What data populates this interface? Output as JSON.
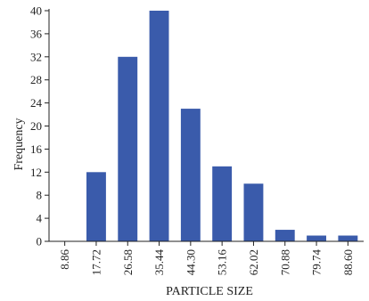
{
  "chart_data": {
    "type": "bar",
    "title": "",
    "xlabel": "PARTICLE SIZE",
    "ylabel": "Frequency",
    "categories": [
      "8.86",
      "17.72",
      "26.58",
      "35.44",
      "44.30",
      "53.16",
      "62.02",
      "70.88",
      "79.74",
      "88.60"
    ],
    "values": [
      0,
      12,
      32,
      40,
      23,
      13,
      10,
      2,
      1,
      1
    ],
    "yticks": [
      "0",
      "4",
      "8",
      "12",
      "16",
      "20",
      "24",
      "28",
      "32",
      "36",
      "40"
    ],
    "ylim": [
      0,
      40
    ],
    "grid": false,
    "bar_color": "#3a5bab"
  }
}
